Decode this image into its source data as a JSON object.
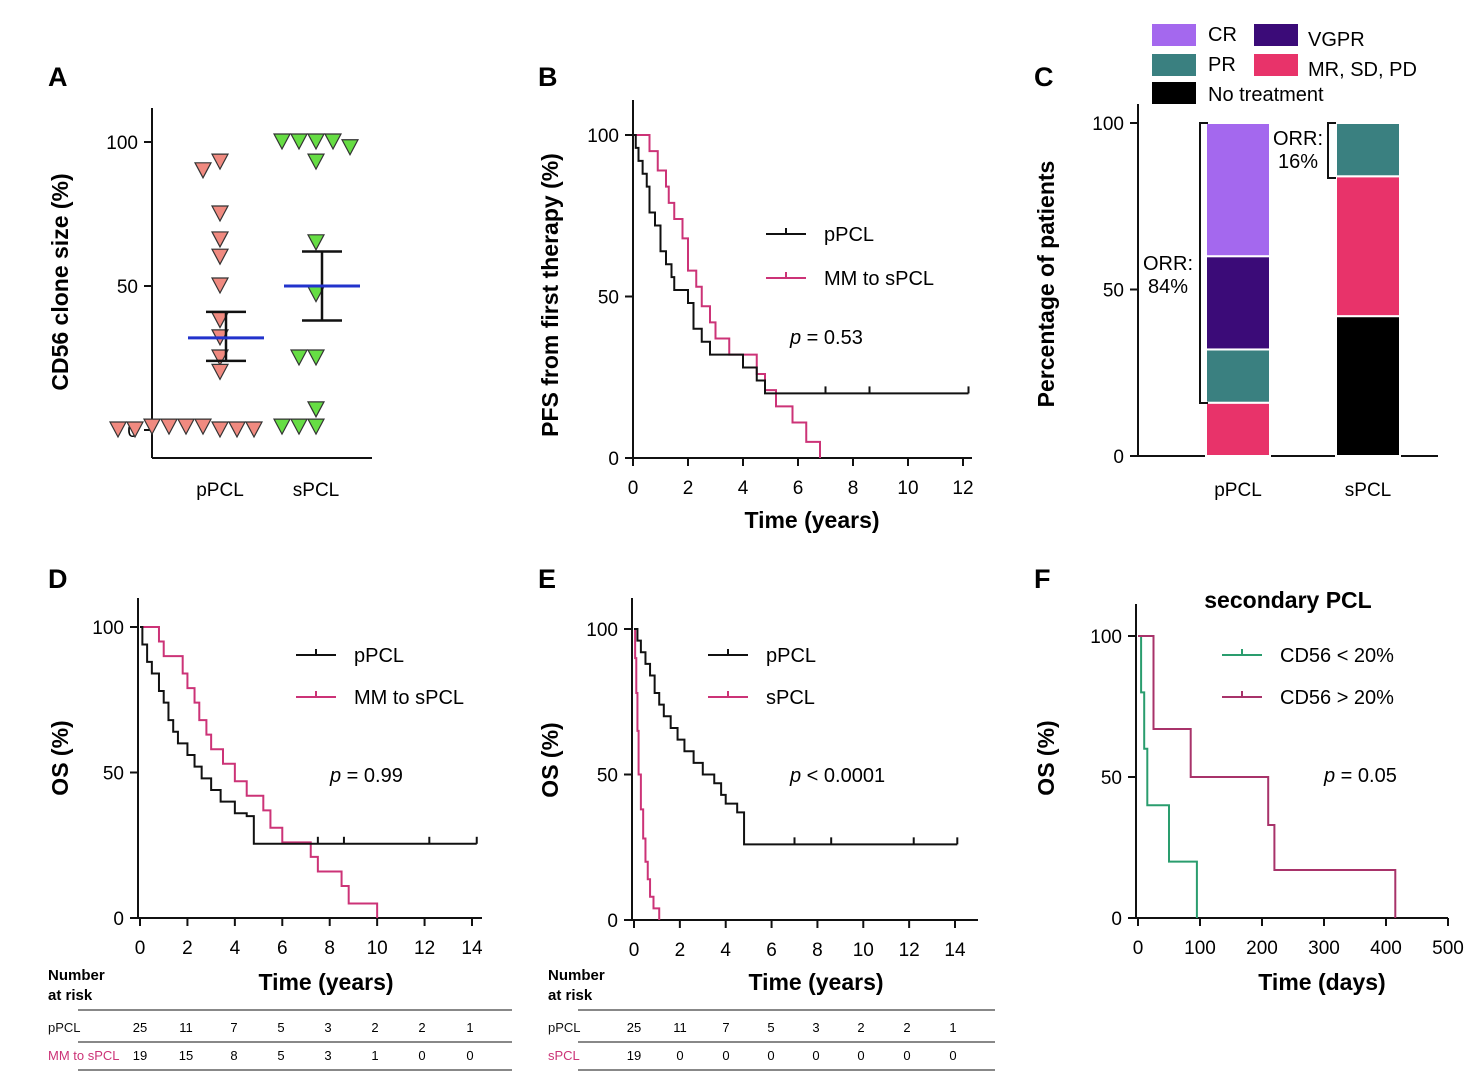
{
  "colors": {
    "ppcl": "#111111",
    "spcl": "#cc3377",
    "cd56_low": "#2a9d6e",
    "cd56_high": "#a8336a",
    "ppcl_marker": "#f08a80",
    "spcl_marker": "#66dd44",
    "mean_line": "#2233cc",
    "CR": "#a468ee",
    "VGPR": "#3b0b78",
    "PR": "#3a8080",
    "MR": "#e8336a",
    "NT": "#000000"
  },
  "panels": {
    "A": {
      "letter": "A",
      "ylabel": "CD56 clone size (%)"
    },
    "B": {
      "letter": "B",
      "ylabel": "PFS from first therapy (%)",
      "xlabel": "Time (years)",
      "legend": [
        "pPCL",
        "MM to sPCL"
      ],
      "p_prefix": "p",
      "p_suffix": " = 0.53"
    },
    "C": {
      "letter": "C",
      "ylabel": "Percentage of patients",
      "legend": [
        "CR",
        "VGPR",
        "PR",
        "MR, SD, PD",
        "No treatment"
      ],
      "orr_ppcl": [
        "ORR:",
        "84%"
      ],
      "orr_spcl": [
        "ORR:",
        "16%"
      ]
    },
    "D": {
      "letter": "D",
      "ylabel": "OS (%)",
      "xlabel": "Time (years)",
      "legend": [
        "pPCL",
        "MM to sPCL"
      ],
      "p_prefix": "p",
      "p_suffix": " = 0.99",
      "risk_title": [
        "Number",
        "at risk"
      ],
      "risk_rows": [
        {
          "label": "pPCL",
          "values": [
            "25",
            "11",
            "7",
            "5",
            "3",
            "2",
            "2",
            "1"
          ]
        },
        {
          "label": "MM to sPCL",
          "values": [
            "19",
            "15",
            "8",
            "5",
            "3",
            "1",
            "0",
            "0"
          ]
        }
      ]
    },
    "E": {
      "letter": "E",
      "ylabel": "OS (%)",
      "xlabel": "Time (years)",
      "legend": [
        "pPCL",
        "sPCL"
      ],
      "p_prefix": "p",
      "p_suffix": " < 0.0001",
      "risk_title": [
        "Number",
        "at risk"
      ],
      "risk_rows": [
        {
          "label": "pPCL",
          "values": [
            "25",
            "11",
            "7",
            "5",
            "3",
            "2",
            "2",
            "1"
          ]
        },
        {
          "label": "sPCL",
          "values": [
            "19",
            "0",
            "0",
            "0",
            "0",
            "0",
            "0",
            "0"
          ]
        }
      ]
    },
    "F": {
      "letter": "F",
      "title": "secondary PCL",
      "ylabel": "OS (%)",
      "xlabel": "Time (days)",
      "legend": [
        "CD56 < 20%",
        "CD56 > 20%"
      ],
      "p_prefix": "p",
      "p_suffix": " = 0.05"
    }
  },
  "chart_data": [
    {
      "panel": "A",
      "type": "scatter",
      "ylabel": "CD56 clone size (%)",
      "ylim": [
        -10,
        110
      ],
      "yticks": [
        0,
        50,
        100
      ],
      "categories": [
        "pPCL",
        "sPCL"
      ],
      "series": [
        {
          "name": "pPCL",
          "values": [
            93,
            90,
            75,
            66,
            60,
            50,
            38,
            32,
            25,
            20,
            1,
            1,
            1,
            1,
            0,
            0,
            0,
            0,
            0
          ],
          "mean": 32,
          "sem_low": 24,
          "sem_high": 41
        },
        {
          "name": "sPCL",
          "values": [
            100,
            100,
            100,
            100,
            98,
            93,
            65,
            47,
            25,
            25,
            7,
            1,
            1,
            1
          ],
          "mean": 50,
          "sem_low": 38,
          "sem_high": 62
        }
      ]
    },
    {
      "panel": "B",
      "type": "line",
      "step": true,
      "xlabel": "Time (years)",
      "ylabel": "PFS from first therapy (%)",
      "xlim": [
        0,
        12.5
      ],
      "ylim": [
        0,
        110
      ],
      "xticks": [
        0,
        2,
        4,
        6,
        8,
        10,
        12
      ],
      "yticks": [
        0,
        50,
        100
      ],
      "series": [
        {
          "name": "pPCL",
          "points": [
            [
              0,
              100
            ],
            [
              0.1,
              96
            ],
            [
              0.2,
              92
            ],
            [
              0.35,
              88
            ],
            [
              0.5,
              84
            ],
            [
              0.6,
              76
            ],
            [
              0.8,
              72
            ],
            [
              1.0,
              64
            ],
            [
              1.2,
              60
            ],
            [
              1.4,
              56
            ],
            [
              1.5,
              52
            ],
            [
              2.0,
              48
            ],
            [
              2.2,
              40
            ],
            [
              2.5,
              36
            ],
            [
              2.8,
              32
            ],
            [
              4.0,
              28
            ],
            [
              4.5,
              24
            ],
            [
              4.8,
              20
            ],
            [
              12.2,
              20
            ]
          ],
          "censored": [
            [
              7.0,
              20
            ],
            [
              8.6,
              20
            ],
            [
              12.2,
              20
            ]
          ]
        },
        {
          "name": "MM to sPCL",
          "points": [
            [
              0,
              100
            ],
            [
              0.6,
              95
            ],
            [
              0.9,
              89
            ],
            [
              1.2,
              84
            ],
            [
              1.3,
              79
            ],
            [
              1.5,
              74
            ],
            [
              1.8,
              68
            ],
            [
              2.0,
              58
            ],
            [
              2.3,
              53
            ],
            [
              2.5,
              47
            ],
            [
              2.8,
              42
            ],
            [
              3.0,
              37
            ],
            [
              3.5,
              32
            ],
            [
              4.0,
              32
            ],
            [
              4.5,
              26
            ],
            [
              4.8,
              21
            ],
            [
              5.2,
              16
            ],
            [
              5.8,
              11
            ],
            [
              6.3,
              5
            ],
            [
              6.8,
              0
            ]
          ],
          "censored": []
        }
      ]
    },
    {
      "panel": "C",
      "type": "bar",
      "stacked": true,
      "ylabel": "Percentage of patients",
      "ylim": [
        0,
        105
      ],
      "yticks": [
        0,
        50,
        100
      ],
      "categories": [
        "pPCL",
        "sPCL"
      ],
      "series": [
        {
          "name": "MR, SD, PD",
          "values": [
            16,
            42
          ]
        },
        {
          "name": "PR",
          "values": [
            16,
            16
          ]
        },
        {
          "name": "VGPR",
          "values": [
            28,
            0
          ]
        },
        {
          "name": "CR",
          "values": [
            40,
            0
          ]
        },
        {
          "name": "No treatment",
          "values": [
            0,
            42
          ]
        }
      ]
    },
    {
      "panel": "D",
      "type": "line",
      "step": true,
      "xlabel": "Time (years)",
      "ylabel": "OS (%)",
      "xlim": [
        0,
        14.5
      ],
      "ylim": [
        0,
        110
      ],
      "xticks": [
        0,
        2,
        4,
        6,
        8,
        10,
        12,
        14
      ],
      "yticks": [
        0,
        50,
        100
      ],
      "series": [
        {
          "name": "pPCL",
          "points": [
            [
              0,
              100
            ],
            [
              0.1,
              94
            ],
            [
              0.3,
              88
            ],
            [
              0.5,
              84
            ],
            [
              0.8,
              78
            ],
            [
              1.0,
              74
            ],
            [
              1.2,
              68
            ],
            [
              1.4,
              64
            ],
            [
              1.6,
              60
            ],
            [
              2.0,
              56
            ],
            [
              2.3,
              52
            ],
            [
              2.6,
              48
            ],
            [
              3.0,
              44
            ],
            [
              3.4,
              40
            ],
            [
              4.0,
              36
            ],
            [
              4.5,
              35
            ],
            [
              4.8,
              25.5
            ],
            [
              14.2,
              25.5
            ]
          ],
          "censored": [
            [
              7.5,
              25.5
            ],
            [
              8.6,
              25.5
            ],
            [
              12.2,
              25.5
            ],
            [
              14.2,
              25.5
            ]
          ]
        },
        {
          "name": "MM to sPCL",
          "points": [
            [
              0,
              100
            ],
            [
              0.8,
              95
            ],
            [
              1.0,
              90
            ],
            [
              1.8,
              84
            ],
            [
              2.0,
              79
            ],
            [
              2.3,
              74
            ],
            [
              2.5,
              68
            ],
            [
              2.8,
              63
            ],
            [
              3.0,
              58
            ],
            [
              3.5,
              53
            ],
            [
              4.0,
              47
            ],
            [
              4.5,
              42
            ],
            [
              5.2,
              37
            ],
            [
              5.5,
              31
            ],
            [
              6.0,
              26
            ],
            [
              7.2,
              21
            ],
            [
              7.5,
              16
            ],
            [
              8.5,
              11
            ],
            [
              8.8,
              5
            ],
            [
              10.0,
              0
            ]
          ],
          "censored": []
        }
      ]
    },
    {
      "panel": "E",
      "type": "line",
      "step": true,
      "xlabel": "Time (years)",
      "ylabel": "OS (%)",
      "xlim": [
        0,
        14.5
      ],
      "ylim": [
        0,
        110
      ],
      "xticks": [
        0,
        2,
        4,
        6,
        8,
        10,
        12,
        14
      ],
      "yticks": [
        0,
        50,
        100
      ],
      "series": [
        {
          "name": "pPCL",
          "points": [
            [
              0,
              100
            ],
            [
              0.15,
              96
            ],
            [
              0.3,
              92
            ],
            [
              0.5,
              88
            ],
            [
              0.7,
              84
            ],
            [
              0.9,
              78
            ],
            [
              1.1,
              74
            ],
            [
              1.3,
              70
            ],
            [
              1.6,
              66
            ],
            [
              1.9,
              62
            ],
            [
              2.2,
              58
            ],
            [
              2.6,
              54
            ],
            [
              3.0,
              50
            ],
            [
              3.5,
              47
            ],
            [
              3.8,
              43
            ],
            [
              4.0,
              40
            ],
            [
              4.5,
              37
            ],
            [
              4.8,
              26
            ],
            [
              14.1,
              26
            ]
          ],
          "censored": [
            [
              7.0,
              26
            ],
            [
              8.6,
              26
            ],
            [
              12.2,
              26
            ],
            [
              14.1,
              26
            ]
          ]
        },
        {
          "name": "sPCL",
          "points": [
            [
              0,
              100
            ],
            [
              0.05,
              90
            ],
            [
              0.1,
              78
            ],
            [
              0.15,
              65
            ],
            [
              0.2,
              50
            ],
            [
              0.3,
              38
            ],
            [
              0.4,
              28
            ],
            [
              0.5,
              20
            ],
            [
              0.6,
              14
            ],
            [
              0.7,
              8
            ],
            [
              0.85,
              4
            ],
            [
              1.1,
              0
            ]
          ],
          "censored": []
        }
      ]
    },
    {
      "panel": "F",
      "type": "line",
      "step": true,
      "title": "secondary PCL",
      "xlabel": "Time (days)",
      "ylabel": "OS (%)",
      "xlim": [
        0,
        500
      ],
      "ylim": [
        0,
        110
      ],
      "xticks": [
        0,
        100,
        200,
        300,
        400,
        500
      ],
      "yticks": [
        0,
        50,
        100
      ],
      "series": [
        {
          "name": "CD56 < 20%",
          "points": [
            [
              0,
              100
            ],
            [
              5,
              80
            ],
            [
              10,
              60
            ],
            [
              15,
              40
            ],
            [
              50,
              20
            ],
            [
              95,
              0
            ]
          ],
          "censored": []
        },
        {
          "name": "CD56 > 20%",
          "points": [
            [
              0,
              100
            ],
            [
              25,
              67
            ],
            [
              85,
              50
            ],
            [
              210,
              33
            ],
            [
              220,
              17
            ],
            [
              415,
              0
            ]
          ],
          "censored": []
        }
      ]
    }
  ]
}
